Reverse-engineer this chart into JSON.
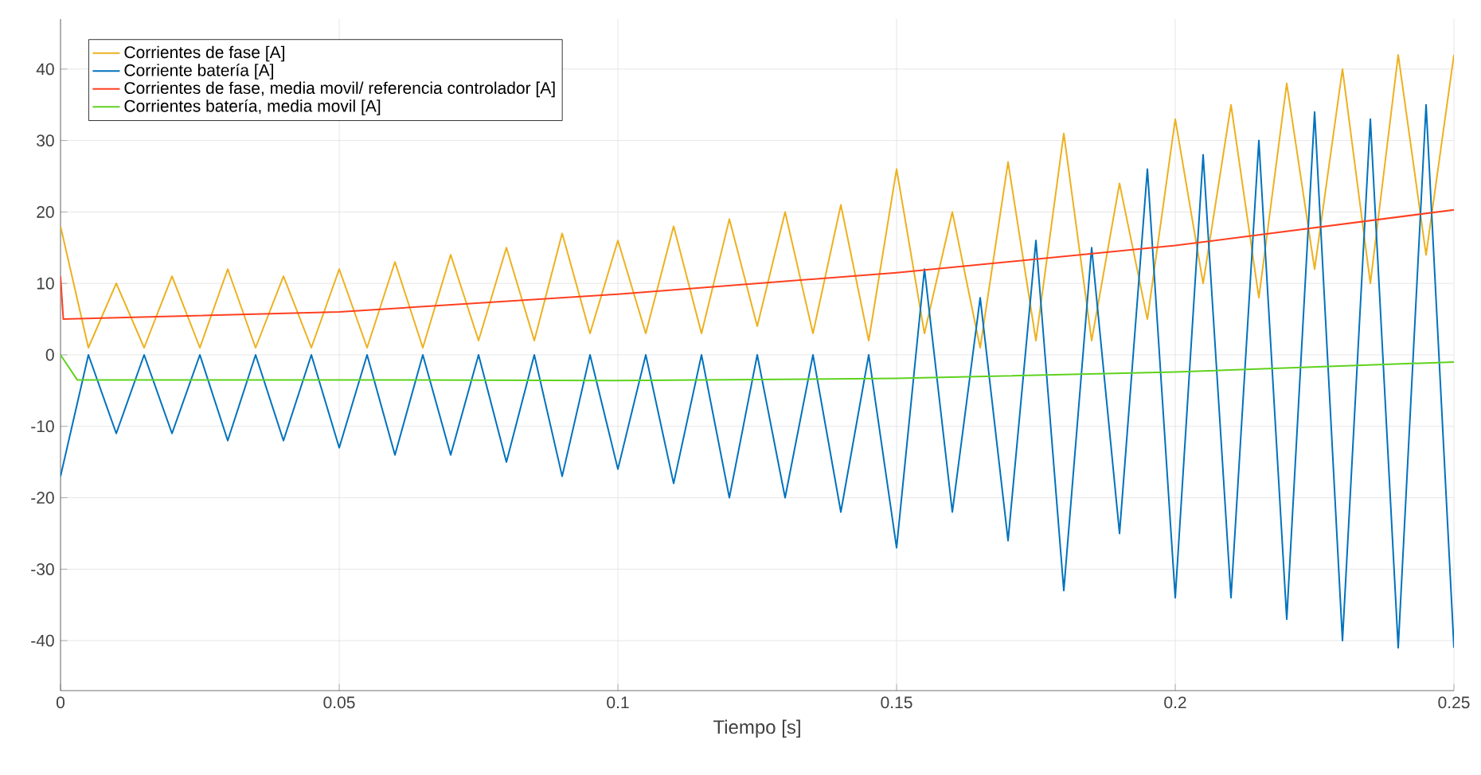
{
  "chart_data": {
    "type": "line",
    "xlabel": "Tiempo [s]",
    "xlim": [
      0,
      0.25
    ],
    "ylim": [
      -47,
      47
    ],
    "xticks": [
      0,
      0.05,
      0.1,
      0.15,
      0.2,
      0.25
    ],
    "yticks": [
      -40,
      -30,
      -20,
      -10,
      0,
      10,
      20,
      30,
      40
    ],
    "grid": true,
    "legend": "top left",
    "series": [
      {
        "name": "Corrientes de fase [A]",
        "color": "#edb120",
        "x": [
          0,
          0.005,
          0.01,
          0.015,
          0.02,
          0.025,
          0.03,
          0.035,
          0.04,
          0.045,
          0.05,
          0.055,
          0.06,
          0.065,
          0.07,
          0.075,
          0.08,
          0.085,
          0.09,
          0.095,
          0.1,
          0.105,
          0.11,
          0.115,
          0.12,
          0.125,
          0.13,
          0.135,
          0.14,
          0.145,
          0.15,
          0.155,
          0.16,
          0.165,
          0.17,
          0.175,
          0.18,
          0.185,
          0.19,
          0.195,
          0.2,
          0.205,
          0.21,
          0.215,
          0.22,
          0.225,
          0.23,
          0.235,
          0.24,
          0.245,
          0.25
        ],
        "values": [
          18,
          1,
          10,
          1,
          11,
          1,
          12,
          1,
          11,
          1,
          12,
          1,
          13,
          1,
          14,
          2,
          15,
          2,
          17,
          3,
          16,
          3,
          18,
          3,
          19,
          4,
          20,
          3,
          21,
          2,
          26,
          3,
          20,
          1,
          27,
          2,
          31,
          2,
          24,
          5,
          33,
          10,
          35,
          8,
          38,
          12,
          40,
          10,
          42,
          14,
          42
        ]
      },
      {
        "name": "Corriente batería [A]",
        "color": "#0072bd",
        "x": [
          0,
          0.005,
          0.01,
          0.015,
          0.02,
          0.025,
          0.03,
          0.035,
          0.04,
          0.045,
          0.05,
          0.055,
          0.06,
          0.065,
          0.07,
          0.075,
          0.08,
          0.085,
          0.09,
          0.095,
          0.1,
          0.105,
          0.11,
          0.115,
          0.12,
          0.125,
          0.13,
          0.135,
          0.14,
          0.145,
          0.15,
          0.155,
          0.16,
          0.165,
          0.17,
          0.175,
          0.18,
          0.185,
          0.19,
          0.195,
          0.2,
          0.205,
          0.21,
          0.215,
          0.22,
          0.225,
          0.23,
          0.235,
          0.24,
          0.245,
          0.25
        ],
        "values": [
          -17,
          0,
          -11,
          0,
          -11,
          0,
          -12,
          0,
          -12,
          0,
          -13,
          0,
          -14,
          0,
          -14,
          0,
          -15,
          0,
          -17,
          0,
          -16,
          0,
          -18,
          0,
          -20,
          0,
          -20,
          0,
          -22,
          0,
          -27,
          12,
          -22,
          8,
          -26,
          16,
          -33,
          15,
          -25,
          26,
          -34,
          28,
          -34,
          30,
          -37,
          34,
          -40,
          33,
          -41,
          35,
          -41
        ]
      },
      {
        "name": "Corrientes de fase, media movil/ referencia controlador [A]",
        "color": "#ff4020",
        "x": [
          0,
          0.0005,
          0.05,
          0.1,
          0.15,
          0.2,
          0.25
        ],
        "values": [
          11,
          5,
          6,
          8.5,
          11.5,
          15.3,
          20.3
        ]
      },
      {
        "name": "Corrientes batería, media movil [A]",
        "color": "#5fd21f",
        "x": [
          0,
          0.003,
          0.05,
          0.1,
          0.15,
          0.2,
          0.25
        ],
        "values": [
          0,
          -3.5,
          -3.5,
          -3.6,
          -3.3,
          -2.4,
          -1
        ]
      }
    ]
  }
}
